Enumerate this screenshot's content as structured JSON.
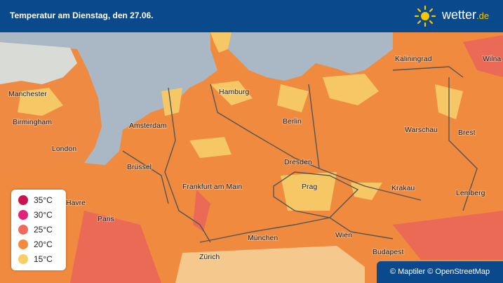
{
  "header": {
    "title": "Temperatur am Dienstag, den 27.06.",
    "logo": {
      "name": "wetter",
      "suffix": ".de"
    }
  },
  "cities": [
    "Manchester",
    "Birmingham",
    "London",
    "Amsterdam",
    "Hamburg",
    "Berlin",
    "Kaliningrad",
    "Wilna",
    "Warschau",
    "Brest",
    "Brüssel",
    "Dresden",
    "Frankfurt am Main",
    "Prag",
    "Krakau",
    "Lemberg",
    "Havre",
    "Paris",
    "München",
    "Wien",
    "Zürich",
    "Budapest"
  ],
  "legend": [
    "35°C",
    "30°C",
    "25°C",
    "20°C",
    "15°C"
  ],
  "attribution": "© Maptiler © OpenStreetMap"
}
